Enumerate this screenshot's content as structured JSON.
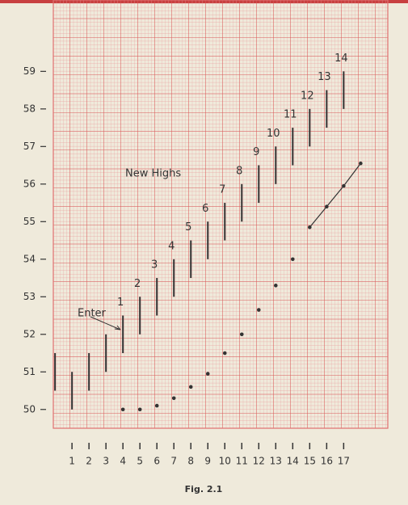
{
  "chart_data": {
    "type": "range-bar",
    "caption": "Fig. 2.1",
    "annotations": {
      "new_highs": "New Highs",
      "enter": "Enter"
    },
    "bars": {
      "x": [
        0,
        1,
        2,
        3,
        4,
        5,
        6,
        7,
        8,
        9,
        10,
        11,
        12,
        13,
        14,
        15,
        16,
        17
      ],
      "low": [
        50.5,
        50,
        50.5,
        51,
        51.5,
        52,
        52.5,
        53,
        53.5,
        54,
        54.5,
        55,
        55.5,
        56,
        56.5,
        57,
        57.5,
        58
      ],
      "high": [
        51.5,
        51,
        51.5,
        52,
        52.5,
        53,
        53.5,
        54,
        54.5,
        55,
        55.5,
        56,
        56.5,
        57,
        57.5,
        58,
        58.5,
        59
      ],
      "labels": [
        null,
        null,
        null,
        null,
        "1",
        "2",
        "3",
        "4",
        "5",
        "6",
        "7",
        "8",
        "9",
        "10",
        "11",
        "12",
        "13",
        "14"
      ],
      "color": "#333333"
    },
    "points": {
      "x": [
        4,
        5,
        6,
        7,
        8,
        9,
        10,
        11,
        12,
        13,
        14
      ],
      "y": [
        50,
        50,
        50.1,
        50.3,
        50.6,
        50.95,
        51.5,
        52,
        52.65,
        53.3,
        54
      ],
      "color": "#333333"
    },
    "trend": {
      "x": [
        15,
        16,
        17,
        18
      ],
      "y": [
        54.85,
        55.4,
        55.95,
        56.55
      ],
      "color": "#333333"
    },
    "xlim": [
      -0.1,
      19.6
    ],
    "ylim": [
      49.5,
      60.9
    ],
    "xticks": [
      1,
      2,
      3,
      4,
      5,
      6,
      7,
      8,
      9,
      10,
      11,
      12,
      13,
      14,
      15,
      16,
      17
    ],
    "yticks": [
      50,
      51,
      52,
      53,
      54,
      55,
      56,
      57,
      58,
      59
    ],
    "grid": true,
    "grid_color": "#e07070"
  }
}
